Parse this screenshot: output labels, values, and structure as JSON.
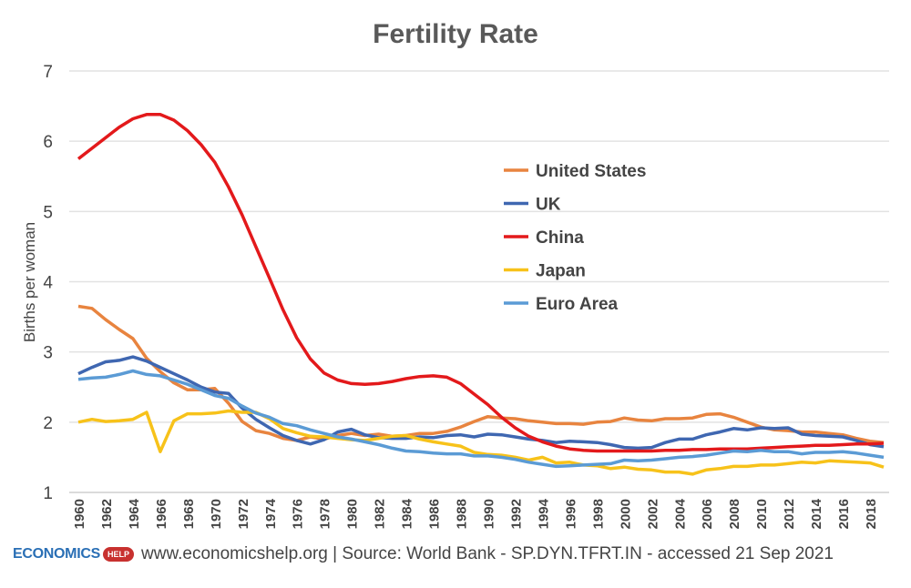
{
  "chart_data": {
    "type": "line",
    "title": "Fertility Rate",
    "xlabel": "",
    "ylabel": "Births per woman",
    "ylim": [
      1,
      7
    ],
    "yticks": [
      1,
      2,
      3,
      4,
      5,
      6,
      7
    ],
    "xlim": [
      1960,
      2019
    ],
    "xticks": [
      1960,
      1962,
      1964,
      1966,
      1968,
      1970,
      1972,
      1974,
      1976,
      1978,
      1980,
      1982,
      1984,
      1986,
      1988,
      1990,
      1992,
      1994,
      1996,
      1998,
      2000,
      2002,
      2004,
      2006,
      2008,
      2010,
      2012,
      2014,
      2016,
      2018
    ],
    "grid": true,
    "legend_position": "center-right",
    "x_start": 1960,
    "series": [
      {
        "name": "United States",
        "color": "#E8843F",
        "values": [
          3.65,
          3.62,
          3.46,
          3.32,
          3.19,
          2.91,
          2.72,
          2.56,
          2.46,
          2.46,
          2.48,
          2.27,
          2.01,
          1.88,
          1.84,
          1.77,
          1.74,
          1.79,
          1.76,
          1.81,
          1.84,
          1.81,
          1.83,
          1.8,
          1.81,
          1.84,
          1.84,
          1.87,
          1.93,
          2.01,
          2.08,
          2.06,
          2.05,
          2.02,
          2.0,
          1.98,
          1.98,
          1.97,
          2.0,
          2.01,
          2.06,
          2.03,
          2.02,
          2.05,
          2.05,
          2.06,
          2.11,
          2.12,
          2.07,
          2.0,
          1.93,
          1.89,
          1.88,
          1.86,
          1.86,
          1.84,
          1.82,
          1.77,
          1.73,
          1.71
        ]
      },
      {
        "name": "UK",
        "color": "#3F67B1",
        "values": [
          2.69,
          2.78,
          2.86,
          2.88,
          2.93,
          2.87,
          2.78,
          2.69,
          2.6,
          2.5,
          2.43,
          2.41,
          2.2,
          2.04,
          1.92,
          1.81,
          1.74,
          1.69,
          1.75,
          1.86,
          1.9,
          1.82,
          1.78,
          1.77,
          1.77,
          1.79,
          1.78,
          1.81,
          1.82,
          1.79,
          1.83,
          1.82,
          1.79,
          1.76,
          1.74,
          1.71,
          1.73,
          1.72,
          1.71,
          1.68,
          1.64,
          1.63,
          1.64,
          1.71,
          1.76,
          1.76,
          1.82,
          1.86,
          1.91,
          1.89,
          1.92,
          1.91,
          1.92,
          1.83,
          1.81,
          1.8,
          1.79,
          1.74,
          1.68,
          1.65
        ]
      },
      {
        "name": "China",
        "color": "#E3191B",
        "values": [
          5.75,
          5.9,
          6.05,
          6.2,
          6.32,
          6.38,
          6.38,
          6.3,
          6.15,
          5.95,
          5.7,
          5.35,
          4.95,
          4.5,
          4.05,
          3.6,
          3.2,
          2.9,
          2.7,
          2.6,
          2.55,
          2.54,
          2.55,
          2.58,
          2.62,
          2.65,
          2.66,
          2.64,
          2.55,
          2.4,
          2.25,
          2.07,
          1.92,
          1.8,
          1.72,
          1.66,
          1.62,
          1.6,
          1.59,
          1.59,
          1.59,
          1.59,
          1.59,
          1.6,
          1.6,
          1.61,
          1.61,
          1.62,
          1.62,
          1.62,
          1.63,
          1.64,
          1.65,
          1.66,
          1.67,
          1.67,
          1.68,
          1.69,
          1.69,
          1.7
        ]
      },
      {
        "name": "Japan",
        "color": "#F7C21A",
        "values": [
          2.0,
          2.04,
          2.01,
          2.02,
          2.04,
          2.14,
          1.58,
          2.02,
          2.12,
          2.12,
          2.13,
          2.16,
          2.14,
          2.14,
          2.05,
          1.91,
          1.85,
          1.8,
          1.79,
          1.77,
          1.75,
          1.74,
          1.77,
          1.8,
          1.81,
          1.76,
          1.72,
          1.69,
          1.66,
          1.57,
          1.54,
          1.53,
          1.5,
          1.46,
          1.5,
          1.42,
          1.43,
          1.39,
          1.38,
          1.34,
          1.36,
          1.33,
          1.32,
          1.29,
          1.29,
          1.26,
          1.32,
          1.34,
          1.37,
          1.37,
          1.39,
          1.39,
          1.41,
          1.43,
          1.42,
          1.45,
          1.44,
          1.43,
          1.42,
          1.36
        ]
      },
      {
        "name": "Euro Area",
        "color": "#5B9BD5",
        "values": [
          2.61,
          2.63,
          2.64,
          2.68,
          2.73,
          2.68,
          2.66,
          2.6,
          2.54,
          2.46,
          2.38,
          2.34,
          2.23,
          2.13,
          2.07,
          1.98,
          1.95,
          1.89,
          1.84,
          1.79,
          1.76,
          1.72,
          1.68,
          1.63,
          1.59,
          1.58,
          1.56,
          1.55,
          1.55,
          1.52,
          1.52,
          1.5,
          1.47,
          1.43,
          1.4,
          1.37,
          1.38,
          1.39,
          1.4,
          1.41,
          1.46,
          1.45,
          1.46,
          1.48,
          1.5,
          1.51,
          1.53,
          1.56,
          1.59,
          1.58,
          1.6,
          1.58,
          1.58,
          1.55,
          1.57,
          1.57,
          1.58,
          1.56,
          1.53,
          1.5
        ]
      }
    ]
  },
  "footer": {
    "logo_text": "ECONOMICS",
    "logo_badge": "HELP",
    "source": "www.economicshelp.org  | Source:  World Bank - SP.DYN.TFRT.IN - accessed 21 Sep 2021"
  }
}
